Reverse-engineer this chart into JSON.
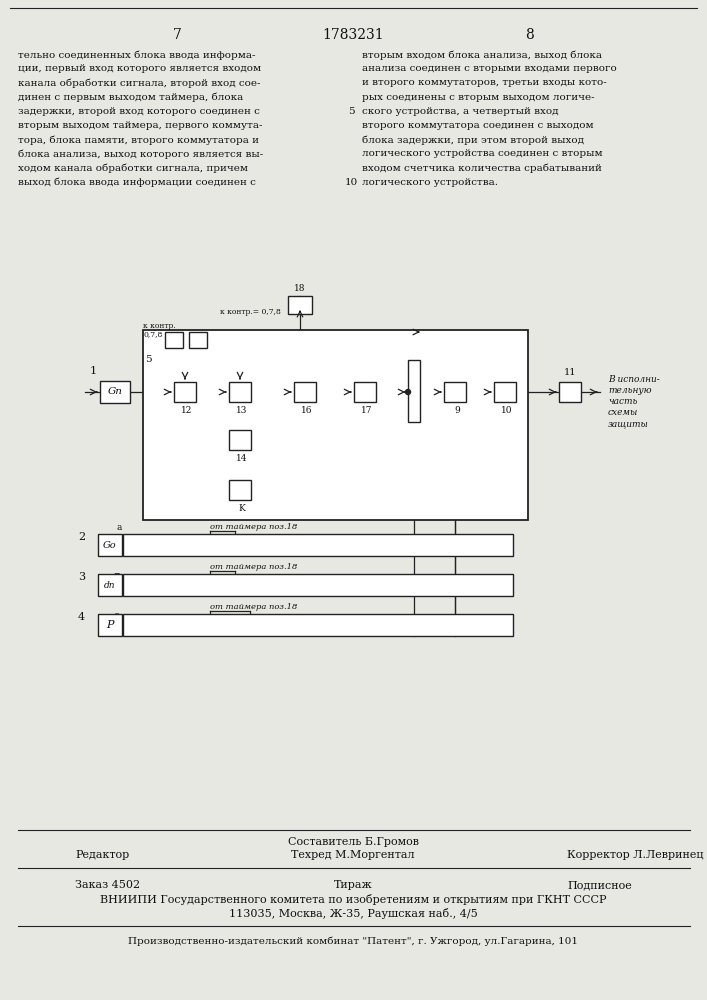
{
  "page_num_left": "7",
  "page_num_center": "1783231",
  "page_num_right": "8",
  "text_left": "тельно соединенных блока ввода информа-\nции, первый вход которого является входом\nканала обработки сигнала, второй вход сое-\nдинен с первым выходом таймера, блока\nзадержки, второй вход которого соединен с\nвторым выходом таймера, первого коммута-\nтора, блока памяти, второго коммутатора и\nблока анализа, выход которого является вы-\nходом канала обработки сигнала, причем\nвыход блока ввода информации соединен с",
  "text_right": "вторым входом блока анализа, выход блока\nанализа соединен с вторыми входами первого\nи второго коммутаторов, третьи входы кото-\nрых соединены с вторым выходом логиче-\nского устройства, а четвертый вход\nвторого коммутатора соединен с выходом\nблока задержки, при этом второй выход\nлогического устройства соединен с вторым\nвходом счетчика количества срабатываний\nлогического устройства.",
  "line_number": "5",
  "line_number2": "10",
  "footer_editor": "Редактор",
  "footer_compiler_label": "Составитель Б.Громов",
  "footer_techred_label": "Техред М.Моргентал",
  "footer_corrector_label": "Корректор Л.Левринец",
  "footer_order": "Заказ 4502",
  "footer_tirazh": "Тираж",
  "footer_podpisnoe": "Подписное",
  "footer_vniipи": "ВНИИПИ Государственного комитета по изобретениям и открытиям при ГКНТ СССР",
  "footer_address": "113035, Москва, Ж-35, Раушская наб., 4/5",
  "footer_kombnat": "Производственно-издательский комбинат \"Патент\", г. Ужгород, ул.Гагарина, 101",
  "bg_color": "#e8e8e3",
  "text_color": "#111111",
  "diagram_color": "#222222"
}
